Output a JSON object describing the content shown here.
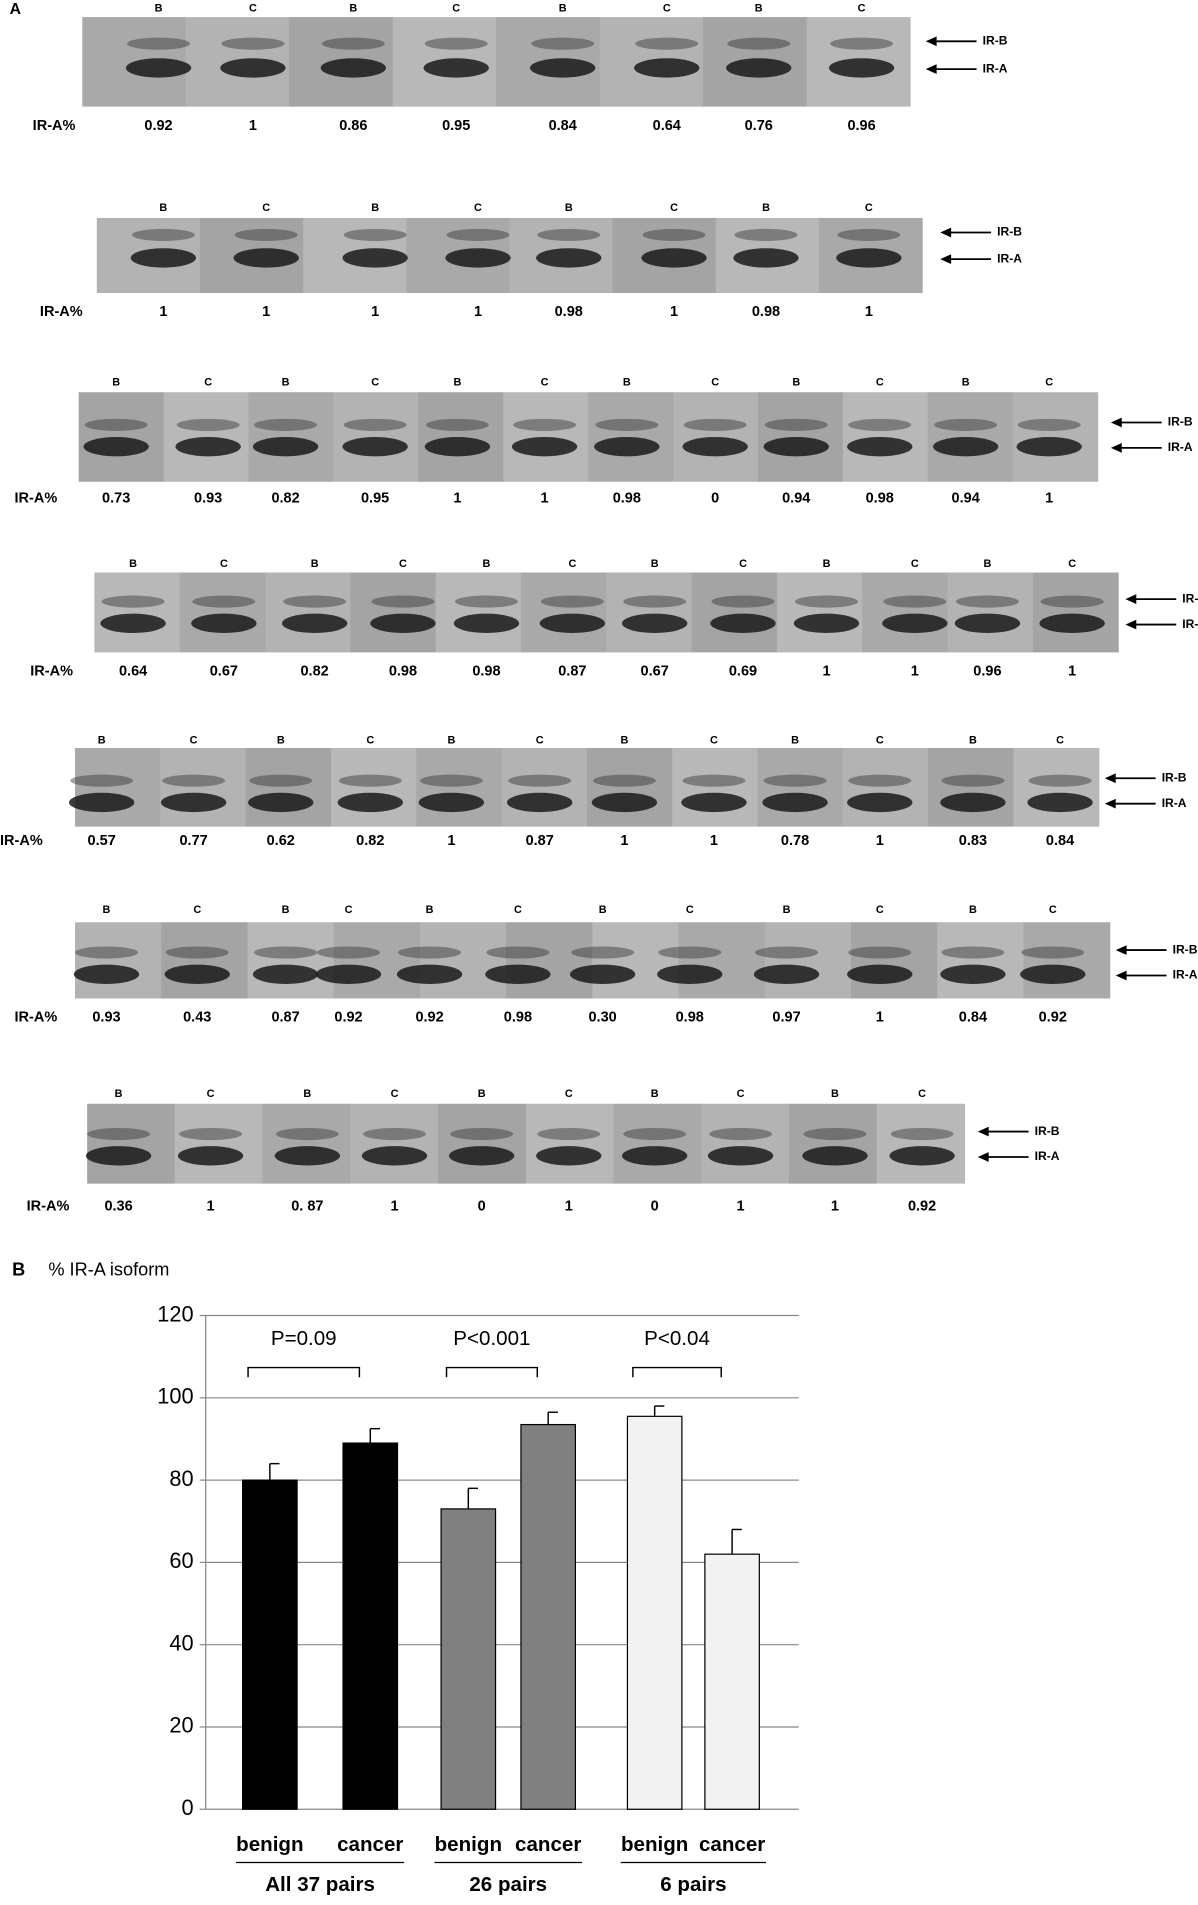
{
  "panel_a": {
    "label": "A",
    "row_label": "IR-A%",
    "band_b": "IR-B",
    "band_a": "IR-A",
    "rows": [
      {
        "lanes": [
          "B",
          "C",
          "B",
          "C",
          "B",
          "C",
          "B",
          "C"
        ],
        "values": [
          "0.92",
          "1",
          "0.86",
          "0.95",
          "0.84",
          "0.64",
          "0.76",
          "0.96"
        ]
      },
      {
        "lanes": [
          "B",
          "C",
          "B",
          "C",
          "B",
          "C",
          "B",
          "C"
        ],
        "values": [
          "1",
          "1",
          "1",
          "1",
          "0.98",
          "1",
          "0.98",
          "1"
        ]
      },
      {
        "lanes": [
          "B",
          "C",
          "B",
          "C",
          "B",
          "C",
          "B",
          "C",
          "B",
          "C",
          "B",
          "C"
        ],
        "values": [
          "0.73",
          "0.93",
          "0.82",
          "0.95",
          "1",
          "1",
          "0.98",
          "0",
          "0.94",
          "0.98",
          "0.94",
          "1"
        ]
      },
      {
        "lanes": [
          "B",
          "C",
          "B",
          "C",
          "B",
          "C",
          "B",
          "C",
          "B",
          "C",
          "B",
          "C"
        ],
        "values": [
          "0.64",
          "0.67",
          "0.82",
          "0.98",
          "0.98",
          "0.87",
          "0.67",
          "0.69",
          "1",
          "1",
          "0.96",
          "1"
        ]
      },
      {
        "lanes": [
          "B",
          "C",
          "B",
          "C",
          "B",
          "C",
          "B",
          "C",
          "B",
          "C",
          "B",
          "C"
        ],
        "values": [
          "0.57",
          "0.77",
          "0.62",
          "0.82",
          "1",
          "0.87",
          "1",
          "1",
          "0.78",
          "1",
          "0.83",
          "0.84"
        ]
      },
      {
        "lanes": [
          "B",
          "C",
          "B",
          "C",
          "B",
          "C",
          "B",
          "C",
          "B",
          "C",
          "B",
          "C"
        ],
        "values": [
          "0.93",
          "0.43",
          "0.87",
          "0.92",
          "0.92",
          "0.98",
          "0.30",
          "0.98",
          "0.97",
          "1",
          "0.84",
          "0.92"
        ]
      },
      {
        "lanes": [
          "B",
          "C",
          "B",
          "C",
          "B",
          "C",
          "B",
          "C",
          "B",
          "C"
        ],
        "values": [
          "0.36",
          "1",
          "0. 87",
          "1",
          "0",
          "1",
          "0",
          "1",
          "1",
          "0.92"
        ]
      }
    ]
  },
  "chart_data": {
    "type": "bar",
    "panel_label": "B",
    "title": "% IR-A isoform",
    "categories": [
      "benign",
      "cancer",
      "benign",
      "cancer",
      "benign",
      "cancer"
    ],
    "values": [
      80,
      89,
      73,
      93.5,
      95.5,
      62
    ],
    "errors": [
      4,
      3.5,
      5,
      3,
      2.5,
      6
    ],
    "colors": [
      "#000000",
      "#000000",
      "#808080",
      "#808080",
      "#f2f2f2",
      "#f2f2f2"
    ],
    "groups": [
      "All 37 pairs",
      "26 pairs",
      "6 pairs"
    ],
    "annotations": [
      "P=0.09",
      "P<0.001",
      "P<0.04"
    ],
    "ylim": [
      0,
      120
    ],
    "yticks": [
      0,
      20,
      40,
      60,
      80,
      100,
      120
    ],
    "grid": true
  }
}
